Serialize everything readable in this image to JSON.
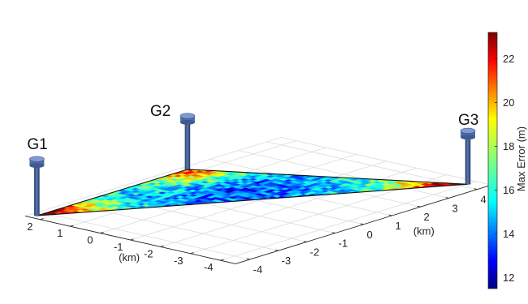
{
  "chart_data": {
    "type": "heatmap",
    "title": "",
    "x_axis": {
      "label": "(km)",
      "ticks": [
        -4,
        -3,
        -2,
        -1,
        0,
        1,
        2,
        3,
        4
      ],
      "range": [
        -4.5,
        4.5
      ]
    },
    "y_axis": {
      "label": "(km)",
      "ticks": [
        2,
        1,
        0,
        -1,
        -2,
        -3,
        -4
      ],
      "range": [
        -4.5,
        2.5
      ]
    },
    "grid": true,
    "colorbar": {
      "label": "Max Error (m)",
      "ticks": [
        12,
        14,
        16,
        18,
        20,
        22
      ],
      "range": [
        11.5,
        23.2
      ],
      "colormap": "jet",
      "position": "right"
    },
    "gateways": [
      {
        "name": "G1",
        "x": -4.3,
        "y": 2.3
      },
      {
        "name": "G2",
        "x": 1.0,
        "y": 2.3
      },
      {
        "name": "G3",
        "x": 4.2,
        "y": -4.0
      }
    ],
    "error_field": {
      "description_values": "Max error is lowest near the triangle centroid and highest near the gateways/vertices",
      "min_value": 11.5,
      "center_value": 13.0,
      "vertex_value": 22.5
    }
  }
}
